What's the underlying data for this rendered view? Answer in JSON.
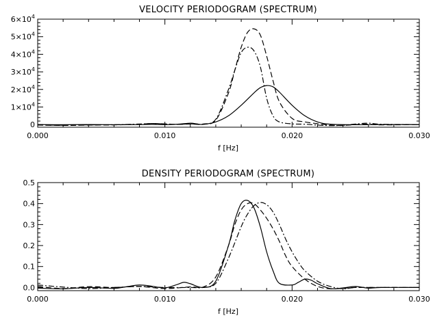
{
  "chart_data": [
    {
      "type": "line",
      "title": "VELOCITY PERIODOGRAM (SPECTRUM)",
      "xlabel": "f [Hz]",
      "ylabel": "",
      "xlim": [
        0.0,
        0.03
      ],
      "ylim": [
        -1500,
        60000
      ],
      "x_ticks": [
        "0.000",
        "0.010",
        "0.020",
        "0.030"
      ],
      "y_ticks": [
        {
          "value": 0,
          "mantissa": "0",
          "exponent": ""
        },
        {
          "value": 10000,
          "mantissa": "1×10",
          "exponent": "4"
        },
        {
          "value": 20000,
          "mantissa": "2×10",
          "exponent": "4"
        },
        {
          "value": 30000,
          "mantissa": "3×10",
          "exponent": "4"
        },
        {
          "value": 40000,
          "mantissa": "4×10",
          "exponent": "4"
        },
        {
          "value": 50000,
          "mantissa": "5×10",
          "exponent": "4"
        },
        {
          "value": 60000,
          "mantissa": "6×10",
          "exponent": "4"
        }
      ],
      "grid": false,
      "legend": "none",
      "series": [
        {
          "style": "solid",
          "x": [
            0,
            0.002,
            0.004,
            0.006,
            0.008,
            0.009,
            0.01,
            0.011,
            0.012,
            0.0125,
            0.013,
            0.014,
            0.015,
            0.016,
            0.017,
            0.0175,
            0.018,
            0.0185,
            0.019,
            0.02,
            0.021,
            0.022,
            0.023,
            0.025,
            0.027,
            0.03
          ],
          "y": [
            0,
            -100,
            0,
            -80,
            0,
            100,
            -50,
            200,
            800,
            400,
            100,
            1500,
            5000,
            11000,
            18000,
            21000,
            22200,
            21500,
            18500,
            11000,
            5000,
            1500,
            200,
            -100,
            0,
            0
          ]
        },
        {
          "style": "dashed",
          "x": [
            0,
            0.002,
            0.004,
            0.006,
            0.008,
            0.009,
            0.01,
            0.011,
            0.012,
            0.013,
            0.014,
            0.015,
            0.0155,
            0.016,
            0.0165,
            0.017,
            0.0175,
            0.018,
            0.0185,
            0.019,
            0.02,
            0.021,
            0.022,
            0.023,
            0.024,
            0.025,
            0.026,
            0.027,
            0.03
          ],
          "y": [
            -300,
            -500,
            -300,
            -200,
            200,
            600,
            400,
            100,
            300,
            200,
            2500,
            18000,
            31000,
            44000,
            52500,
            54500,
            51000,
            39000,
            25000,
            13000,
            3500,
            1500,
            500,
            -300,
            -500,
            0,
            200,
            -200,
            0
          ]
        },
        {
          "style": "dashdot",
          "x": [
            0,
            0.002,
            0.004,
            0.006,
            0.008,
            0.009,
            0.01,
            0.011,
            0.012,
            0.013,
            0.014,
            0.015,
            0.0155,
            0.016,
            0.0165,
            0.017,
            0.0175,
            0.018,
            0.0185,
            0.019,
            0.02,
            0.021,
            0.022,
            0.023,
            0.024,
            0.025,
            0.026,
            0.027,
            0.03
          ],
          "y": [
            -200,
            -400,
            -200,
            -100,
            300,
            600,
            300,
            100,
            400,
            300,
            3000,
            20000,
            31000,
            41000,
            44000,
            42000,
            33000,
            15000,
            5000,
            1500,
            400,
            200,
            -300,
            -600,
            -400,
            300,
            800,
            200,
            0
          ]
        }
      ]
    },
    {
      "type": "line",
      "title": "DENSITY PERIODOGRAM (SPECTRUM)",
      "xlabel": "f [Hz]",
      "ylabel": "",
      "xlim": [
        0.0,
        0.03
      ],
      "ylim": [
        -0.015,
        0.5
      ],
      "x_ticks": [
        "0.000",
        "0.010",
        "0.020",
        "0.030"
      ],
      "y_ticks": [
        {
          "value": 0.0,
          "label": "0.0"
        },
        {
          "value": 0.1,
          "label": "0.1"
        },
        {
          "value": 0.2,
          "label": "0.2"
        },
        {
          "value": 0.3,
          "label": "0.3"
        },
        {
          "value": 0.4,
          "label": "0.4"
        },
        {
          "value": 0.5,
          "label": "0.5"
        }
      ],
      "grid": false,
      "legend": "none",
      "series": [
        {
          "style": "solid",
          "x": [
            0,
            0.002,
            0.004,
            0.006,
            0.007,
            0.008,
            0.009,
            0.01,
            0.011,
            0.0115,
            0.012,
            0.013,
            0.014,
            0.015,
            0.0155,
            0.016,
            0.0165,
            0.017,
            0.0175,
            0.018,
            0.0185,
            0.019,
            0.02,
            0.0205,
            0.021,
            0.0215,
            0.022,
            0.023,
            0.024,
            0.025,
            0.026,
            0.027,
            0.03
          ],
          "y": [
            -0.003,
            -0.006,
            0.0,
            -0.004,
            0.004,
            0.012,
            0.006,
            -0.002,
            0.015,
            0.025,
            0.018,
            0.0,
            0.03,
            0.2,
            0.32,
            0.4,
            0.415,
            0.38,
            0.29,
            0.17,
            0.08,
            0.02,
            0.012,
            0.025,
            0.04,
            0.035,
            0.018,
            -0.005,
            -0.002,
            0.005,
            -0.003,
            0.0,
            0.0
          ]
        },
        {
          "style": "dashed",
          "x": [
            0,
            0.002,
            0.004,
            0.006,
            0.008,
            0.01,
            0.012,
            0.013,
            0.014,
            0.015,
            0.0155,
            0.016,
            0.0165,
            0.017,
            0.0175,
            0.018,
            0.0185,
            0.019,
            0.0195,
            0.02,
            0.021,
            0.022,
            0.023,
            0.024,
            0.025,
            0.027,
            0.03
          ],
          "y": [
            0.005,
            -0.005,
            0.004,
            0.0,
            0.005,
            -0.005,
            0.003,
            0.002,
            0.05,
            0.2,
            0.3,
            0.37,
            0.4,
            0.4,
            0.37,
            0.33,
            0.28,
            0.22,
            0.15,
            0.1,
            0.04,
            0.005,
            -0.006,
            -0.004,
            0.0,
            0.0,
            0.0
          ]
        },
        {
          "style": "dashdot",
          "x": [
            0,
            0.002,
            0.004,
            0.006,
            0.008,
            0.01,
            0.012,
            0.013,
            0.014,
            0.015,
            0.016,
            0.0165,
            0.017,
            0.0175,
            0.018,
            0.0185,
            0.019,
            0.0195,
            0.02,
            0.0205,
            0.021,
            0.022,
            0.023,
            0.024,
            0.025,
            0.027,
            0.03
          ],
          "y": [
            0.012,
            0.002,
            -0.005,
            0.0,
            0.005,
            0.0,
            0.0,
            0.0,
            0.02,
            0.14,
            0.29,
            0.35,
            0.39,
            0.405,
            0.395,
            0.36,
            0.3,
            0.23,
            0.17,
            0.12,
            0.08,
            0.03,
            0.005,
            -0.006,
            0.0,
            0.0,
            0.0
          ]
        }
      ]
    }
  ]
}
